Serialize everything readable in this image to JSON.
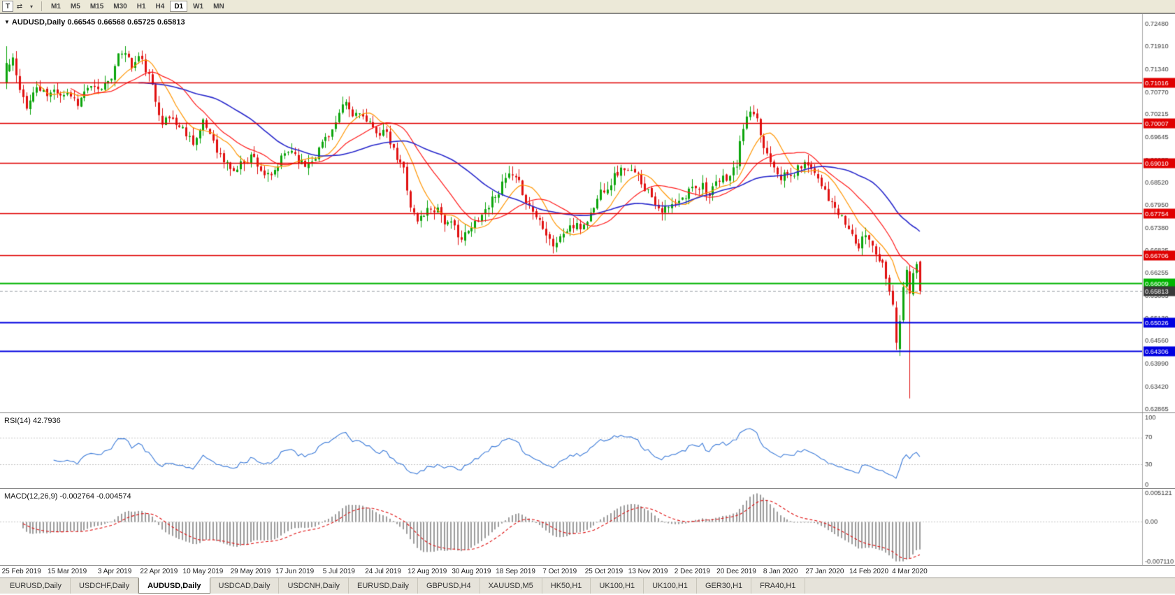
{
  "toolbar": {
    "tool_button": "T",
    "arrows_glyph": "⇄",
    "caret_glyph": "▾",
    "timeframes": [
      "M1",
      "M5",
      "M15",
      "M30",
      "H1",
      "H4",
      "D1",
      "W1",
      "MN"
    ],
    "active_timeframe": "D1"
  },
  "main_chart": {
    "dropdown_glyph": "▼",
    "symbol_title": "AUDUSD,Daily",
    "ohlc_text": "0.66545 0.66568 0.65725 0.65813"
  },
  "rsi_panel": {
    "title": "RSI(14)",
    "value": "42.7936",
    "axis_labels": [
      {
        "v": 100,
        "t": "100"
      },
      {
        "v": 70,
        "t": "70"
      },
      {
        "v": 30,
        "t": "30"
      },
      {
        "v": 0,
        "t": "0"
      }
    ]
  },
  "macd_panel": {
    "title": "MACD(12,26,9)",
    "value_main": "-0.002764",
    "value_signal": "-0.004574",
    "axis_labels": [
      {
        "v": 0.005121,
        "t": "0.005121"
      },
      {
        "v": 0,
        "t": "0.00"
      },
      {
        "v": -0.00711,
        "t": "-0.007110"
      }
    ]
  },
  "tabs": {
    "active_index": 2,
    "items": [
      "EURUSD,Daily",
      "USDCHF,Daily",
      "AUDUSD,Daily",
      "USDCAD,Daily",
      "USDCNH,Daily",
      "EURUSD,Daily",
      "GBPUSD,H4",
      "XAUUSD,M5",
      "HK50,H1",
      "UK100,H1",
      "UK100,H1",
      "GER30,H1",
      "FRA40,H1"
    ]
  },
  "chart_data": {
    "type": "candlestick",
    "symbol": "AUDUSD",
    "timeframe": "Daily",
    "price_scale": {
      "top": 0.7248,
      "bottom": 0.62865,
      "tick_labels": [
        "0.72480",
        "0.71910",
        "0.71340",
        "0.70770",
        "0.70215",
        "0.69645",
        "0.69075",
        "0.68520",
        "0.67950",
        "0.67380",
        "0.66825",
        "0.66255",
        "0.65685",
        "0.65130",
        "0.64560",
        "0.63990",
        "0.63420",
        "0.62865"
      ]
    },
    "hlines": [
      {
        "price": 0.71016,
        "label": "0.71016",
        "color": "#e00000",
        "width": 1.4
      },
      {
        "price": 0.70007,
        "label": "0.70007",
        "color": "#e00000",
        "width": 1.4
      },
      {
        "price": 0.6901,
        "label": "0.69010",
        "color": "#e00000",
        "width": 1.4
      },
      {
        "price": 0.67754,
        "label": "0.67754",
        "color": "#e00000",
        "width": 1.4
      },
      {
        "price": 0.66706,
        "label": "0.66706",
        "color": "#e00000",
        "width": 1.4
      },
      {
        "price": 0.66009,
        "label": "0.66009",
        "color": "#00b400",
        "width": 2.2
      },
      {
        "price": 0.65026,
        "label": "0.65026",
        "color": "#0000e0",
        "width": 1.8
      },
      {
        "price": 0.64306,
        "label": "0.64306",
        "color": "#0000e0",
        "width": 1.8
      }
    ],
    "bid_line": {
      "price": 0.65813,
      "label": "0.65813",
      "badge_color": "#3a3a3a",
      "line_color": "#9aa0a6"
    },
    "date_ticks": [
      {
        "i": 0,
        "t": "25 Feb 2019"
      },
      {
        "i": 18,
        "t": "15 Mar 2019"
      },
      {
        "i": 32,
        "t": "3 Apr 2019"
      },
      {
        "i": 45,
        "t": "22 Apr 2019"
      },
      {
        "i": 58,
        "t": "10 May 2019"
      },
      {
        "i": 72,
        "t": "29 May 2019"
      },
      {
        "i": 85,
        "t": "17 Jun 2019"
      },
      {
        "i": 98,
        "t": "5 Jul 2019"
      },
      {
        "i": 111,
        "t": "24 Jul 2019"
      },
      {
        "i": 124,
        "t": "12 Aug 2019"
      },
      {
        "i": 137,
        "t": "30 Aug 2019"
      },
      {
        "i": 150,
        "t": "18 Sep 2019"
      },
      {
        "i": 163,
        "t": "7 Oct 2019"
      },
      {
        "i": 176,
        "t": "25 Oct 2019"
      },
      {
        "i": 189,
        "t": "13 Nov 2019"
      },
      {
        "i": 202,
        "t": "2 Dec 2019"
      },
      {
        "i": 215,
        "t": "20 Dec 2019"
      },
      {
        "i": 228,
        "t": "8 Jan 2020"
      },
      {
        "i": 241,
        "t": "27 Jan 2020"
      },
      {
        "i": 254,
        "t": "14 Feb 2020"
      },
      {
        "i": 266,
        "t": "4 Mar 2020"
      }
    ],
    "candles": {
      "count": 270,
      "seed": 11,
      "up_color": "#0ca50c",
      "down_color": "#e01010",
      "waypoints": [
        [
          0,
          0.713
        ],
        [
          2,
          0.716
        ],
        [
          4,
          0.707
        ],
        [
          6,
          0.7045
        ],
        [
          9,
          0.709
        ],
        [
          12,
          0.7065
        ],
        [
          15,
          0.708
        ],
        [
          18,
          0.7085
        ],
        [
          21,
          0.7055
        ],
        [
          24,
          0.709
        ],
        [
          27,
          0.707
        ],
        [
          30,
          0.711
        ],
        [
          33,
          0.716
        ],
        [
          35,
          0.7185
        ],
        [
          37,
          0.714
        ],
        [
          39,
          0.7165
        ],
        [
          42,
          0.7115
        ],
        [
          44,
          0.705
        ],
        [
          46,
          0.7015
        ],
        [
          49,
          0.701
        ],
        [
          52,
          0.6985
        ],
        [
          55,
          0.696
        ],
        [
          58,
          0.6995
        ],
        [
          61,
          0.696
        ],
        [
          64,
          0.6905
        ],
        [
          67,
          0.688
        ],
        [
          70,
          0.6905
        ],
        [
          72,
          0.6925
        ],
        [
          75,
          0.689
        ],
        [
          78,
          0.6855
        ],
        [
          81,
          0.6905
        ],
        [
          84,
          0.6935
        ],
        [
          85,
          0.6925
        ],
        [
          88,
          0.6895
        ],
        [
          91,
          0.693
        ],
        [
          94,
          0.6965
        ],
        [
          97,
          0.7
        ],
        [
          100,
          0.704
        ],
        [
          102,
          0.701
        ],
        [
          104,
          0.7035
        ],
        [
          106,
          0.7
        ],
        [
          108,
          0.6975
        ],
        [
          111,
          0.6985
        ],
        [
          113,
          0.6945
        ],
        [
          115,
          0.6905
        ],
        [
          117,
          0.688
        ],
        [
          119,
          0.68
        ],
        [
          121,
          0.6755
        ],
        [
          124,
          0.6785
        ],
        [
          127,
          0.6795
        ],
        [
          129,
          0.676
        ],
        [
          132,
          0.673
        ],
        [
          134,
          0.6715
        ],
        [
          137,
          0.673
        ],
        [
          139,
          0.6765
        ],
        [
          142,
          0.68
        ],
        [
          145,
          0.684
        ],
        [
          148,
          0.6865
        ],
        [
          150,
          0.6845
        ],
        [
          153,
          0.681
        ],
        [
          156,
          0.677
        ],
        [
          159,
          0.674
        ],
        [
          161,
          0.6705
        ],
        [
          163,
          0.6715
        ],
        [
          166,
          0.6745
        ],
        [
          169,
          0.6735
        ],
        [
          172,
          0.6775
        ],
        [
          175,
          0.683
        ],
        [
          176,
          0.684
        ],
        [
          179,
          0.6875
        ],
        [
          182,
          0.689
        ],
        [
          185,
          0.6865
        ],
        [
          188,
          0.6845
        ],
        [
          189,
          0.6835
        ],
        [
          192,
          0.68
        ],
        [
          195,
          0.6785
        ],
        [
          198,
          0.6795
        ],
        [
          200,
          0.681
        ],
        [
          202,
          0.6845
        ],
        [
          205,
          0.6855
        ],
        [
          207,
          0.6825
        ],
        [
          210,
          0.6845
        ],
        [
          213,
          0.687
        ],
        [
          215,
          0.6895
        ],
        [
          217,
          0.699
        ],
        [
          219,
          0.7025
        ],
        [
          221,
          0.699
        ],
        [
          223,
          0.6935
        ],
        [
          226,
          0.6905
        ],
        [
          228,
          0.688
        ],
        [
          231,
          0.6865
        ],
        [
          234,
          0.6895
        ],
        [
          237,
          0.69
        ],
        [
          239,
          0.687
        ],
        [
          241,
          0.6845
        ],
        [
          243,
          0.68
        ],
        [
          246,
          0.6755
        ],
        [
          249,
          0.672
        ],
        [
          251,
          0.669
        ],
        [
          253,
          0.672
        ],
        [
          254,
          0.671
        ],
        [
          256,
          0.6685
        ],
        [
          258,
          0.6655
        ],
        [
          260,
          0.66
        ],
        [
          261,
          0.655
        ],
        [
          262,
          0.645
        ],
        [
          263,
          0.652
        ],
        [
          264,
          0.66
        ],
        [
          265,
          0.663
        ],
        [
          266,
          0.657
        ],
        [
          267,
          0.662
        ],
        [
          268,
          0.664
        ],
        [
          269,
          0.65813
        ]
      ],
      "overrides": {
        "0": {
          "o": 0.71,
          "h": 0.7192,
          "l": 0.7085,
          "c": 0.715
        },
        "262": {
          "o": 0.654,
          "h": 0.6555,
          "l": 0.6434,
          "c": 0.6452
        },
        "266": {
          "o": 0.663,
          "h": 0.6645,
          "l": 0.6313,
          "c": 0.6575
        },
        "269": {
          "o": 0.66545,
          "h": 0.66568,
          "l": 0.65725,
          "c": 0.65813
        }
      }
    },
    "moving_averages": [
      {
        "period": 10,
        "color": "#ff9500",
        "width": 1.2
      },
      {
        "period": 20,
        "color": "#ff1a1a",
        "width": 1.2
      },
      {
        "period": 40,
        "color": "#2929cc",
        "width": 1.6
      }
    ],
    "rsi": {
      "period": 14,
      "color": "#3c7bd9",
      "levels": [
        70,
        30
      ]
    },
    "macd": {
      "fast": 12,
      "slow": 26,
      "signal_period": 9,
      "min": -0.00711,
      "max": 0.005121,
      "hist_color": "#9c9c9c",
      "signal_color": "#e01010"
    }
  }
}
